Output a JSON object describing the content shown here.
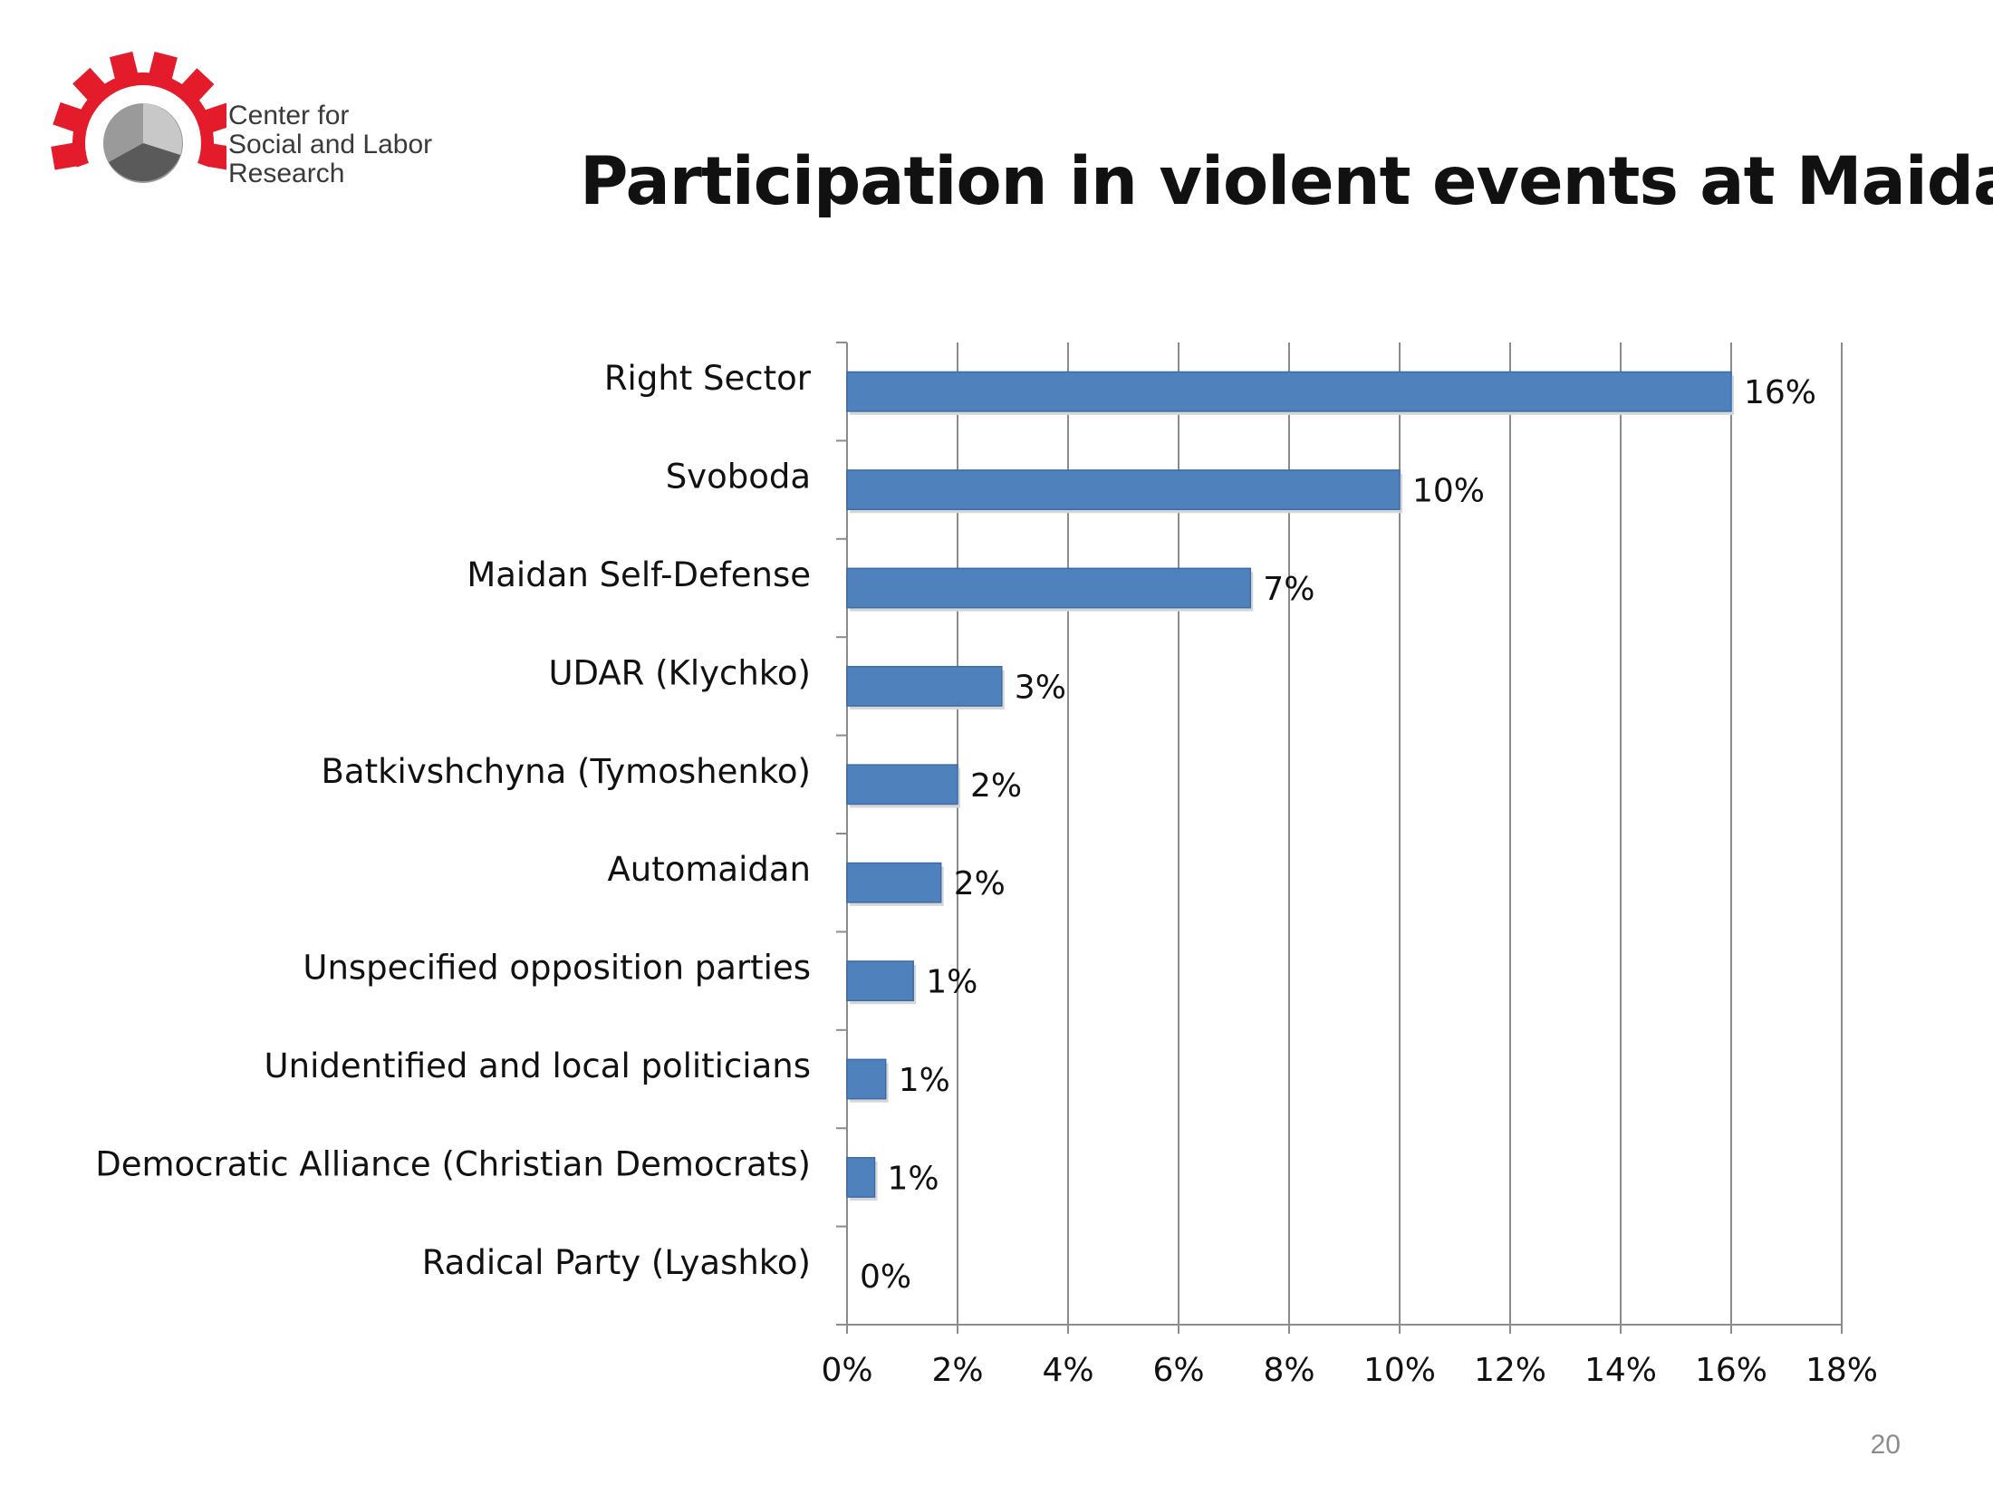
{
  "logo": {
    "lines": [
      "Center for",
      "Social and Labor",
      "Research"
    ]
  },
  "slide": {
    "title": "Participation in violent events at Maidan",
    "page_number": "20"
  },
  "colors": {
    "bar": "#4f81bd",
    "bar_border": "#3a6ca8",
    "grid": "#8c8c8c",
    "logo_gear": "#e31b2a"
  },
  "chart_data": {
    "type": "bar",
    "orientation": "horizontal",
    "title": "",
    "xlabel": "",
    "ylabel": "",
    "xlim": [
      0,
      18
    ],
    "x_tick_step": 2,
    "x_tick_labels": [
      "0%",
      "2%",
      "4%",
      "6%",
      "8%",
      "10%",
      "12%",
      "14%",
      "16%",
      "18%"
    ],
    "grid": true,
    "legend": "none",
    "categories": [
      "Right Sector",
      "Svoboda",
      "Maidan Self-Defense",
      "UDAR (Klychko)",
      "Batkivshchyna (Tymoshenko)",
      "Automaidan",
      "Unspecified opposition parties",
      "Unidentified and local politicians",
      "Democratic Alliance (Christian Democrats)",
      "Radical Party (Lyashko)"
    ],
    "values": [
      16.0,
      10.0,
      7.3,
      2.8,
      2.0,
      1.7,
      1.2,
      0.7,
      0.5,
      0.0
    ],
    "data_labels": [
      "16%",
      "10%",
      "7%",
      "3%",
      "2%",
      "2%",
      "1%",
      "1%",
      "1%",
      "0%"
    ]
  }
}
